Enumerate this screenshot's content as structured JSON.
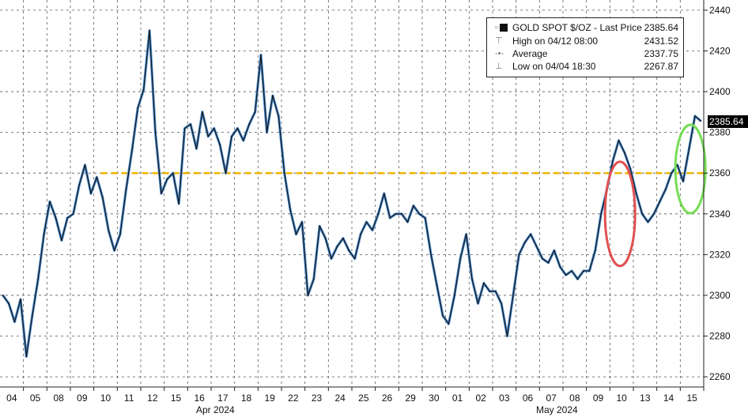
{
  "legend": {
    "title": "GOLD SPOT $/OZ - Last Price",
    "title_value": "2385.64",
    "high_label": "High on 04/12 08:00",
    "high_value": "2431.52",
    "avg_label": "Average",
    "avg_value": "2337.75",
    "low_label": "Low on 04/04 18:30",
    "low_value": "2267.87"
  },
  "last_price_badge": "2385.64",
  "months": {
    "april": "Apr 2024",
    "may": "May 2024"
  },
  "chart_data": {
    "type": "line",
    "title": "",
    "xlabel": "",
    "ylabel": "",
    "ylim": [
      2255,
      2445
    ],
    "yticks": [
      2260,
      2280,
      2300,
      2320,
      2340,
      2360,
      2380,
      2400,
      2420,
      2440
    ],
    "xticks": [
      "04",
      "05",
      "08",
      "09",
      "10",
      "11",
      "12",
      "15",
      "16",
      "17",
      "18",
      "19",
      "22",
      "23",
      "24",
      "25",
      "26",
      "29",
      "30",
      "01",
      "02",
      "03",
      "06",
      "07",
      "08",
      "09",
      "10",
      "13",
      "14",
      "15"
    ],
    "reference_line": {
      "value": 2360,
      "color": "#f0b400",
      "style": "dashed"
    },
    "annotations": [
      {
        "shape": "ellipse",
        "color": "#e05050",
        "around": "10"
      },
      {
        "shape": "ellipse",
        "color": "#77dd55",
        "around": "15"
      }
    ],
    "series": [
      {
        "color": "#1a1a1a",
        "highlight": "#4a90d9",
        "points": [
          [
            "04",
            2300
          ],
          [
            "04",
            2296
          ],
          [
            "04",
            2287
          ],
          [
            "04",
            2298
          ],
          [
            "05",
            2270
          ],
          [
            "05",
            2290
          ],
          [
            "05",
            2308
          ],
          [
            "05",
            2330
          ],
          [
            "08",
            2346
          ],
          [
            "08",
            2338
          ],
          [
            "08",
            2327
          ],
          [
            "08",
            2338
          ],
          [
            "09",
            2340
          ],
          [
            "09",
            2354
          ],
          [
            "09",
            2364
          ],
          [
            "09",
            2350
          ],
          [
            "10",
            2358
          ],
          [
            "10",
            2348
          ],
          [
            "10",
            2332
          ],
          [
            "10",
            2322
          ],
          [
            "11",
            2330
          ],
          [
            "11",
            2352
          ],
          [
            "11",
            2371
          ],
          [
            "11",
            2392
          ],
          [
            "12",
            2401
          ],
          [
            "12",
            2430
          ],
          [
            "12",
            2380
          ],
          [
            "12",
            2350
          ],
          [
            "15",
            2357
          ],
          [
            "15",
            2360
          ],
          [
            "15",
            2345
          ],
          [
            "15",
            2382
          ],
          [
            "16",
            2384
          ],
          [
            "16",
            2372
          ],
          [
            "16",
            2390
          ],
          [
            "16",
            2378
          ],
          [
            "17",
            2382
          ],
          [
            "17",
            2374
          ],
          [
            "17",
            2360
          ],
          [
            "17",
            2378
          ],
          [
            "18",
            2382
          ],
          [
            "18",
            2376
          ],
          [
            "18",
            2384
          ],
          [
            "18",
            2390
          ],
          [
            "19",
            2418
          ],
          [
            "19",
            2380
          ],
          [
            "19",
            2398
          ],
          [
            "19",
            2388
          ],
          [
            "22",
            2360
          ],
          [
            "22",
            2342
          ],
          [
            "22",
            2330
          ],
          [
            "22",
            2336
          ],
          [
            "23",
            2300
          ],
          [
            "23",
            2308
          ],
          [
            "23",
            2334
          ],
          [
            "23",
            2328
          ],
          [
            "24",
            2318
          ],
          [
            "24",
            2324
          ],
          [
            "24",
            2328
          ],
          [
            "24",
            2322
          ],
          [
            "25",
            2318
          ],
          [
            "25",
            2330
          ],
          [
            "25",
            2336
          ],
          [
            "25",
            2332
          ],
          [
            "26",
            2340
          ],
          [
            "26",
            2350
          ],
          [
            "26",
            2338
          ],
          [
            "26",
            2340
          ],
          [
            "29",
            2340
          ],
          [
            "29",
            2336
          ],
          [
            "29",
            2344
          ],
          [
            "29",
            2340
          ],
          [
            "30",
            2338
          ],
          [
            "30",
            2320
          ],
          [
            "30",
            2305
          ],
          [
            "30",
            2290
          ],
          [
            "01",
            2286
          ],
          [
            "01",
            2300
          ],
          [
            "01",
            2318
          ],
          [
            "01",
            2330
          ],
          [
            "02",
            2308
          ],
          [
            "02",
            2296
          ],
          [
            "02",
            2306
          ],
          [
            "02",
            2302
          ],
          [
            "03",
            2302
          ],
          [
            "03",
            2296
          ],
          [
            "03",
            2280
          ],
          [
            "03",
            2300
          ],
          [
            "06",
            2320
          ],
          [
            "06",
            2326
          ],
          [
            "06",
            2330
          ],
          [
            "06",
            2324
          ],
          [
            "07",
            2318
          ],
          [
            "07",
            2316
          ],
          [
            "07",
            2322
          ],
          [
            "07",
            2314
          ],
          [
            "08",
            2310
          ],
          [
            "08",
            2312
          ],
          [
            "08",
            2308
          ],
          [
            "08",
            2312
          ],
          [
            "09",
            2312
          ],
          [
            "09",
            2322
          ],
          [
            "09",
            2340
          ],
          [
            "09",
            2352
          ],
          [
            "10",
            2366
          ],
          [
            "10",
            2376
          ],
          [
            "10",
            2370
          ],
          [
            "10",
            2362
          ],
          [
            "13",
            2350
          ],
          [
            "13",
            2340
          ],
          [
            "13",
            2336
          ],
          [
            "13",
            2340
          ],
          [
            "14",
            2346
          ],
          [
            "14",
            2352
          ],
          [
            "14",
            2360
          ],
          [
            "14",
            2364
          ],
          [
            "15",
            2356
          ],
          [
            "15",
            2372
          ],
          [
            "15",
            2388
          ],
          [
            "15",
            2385.64
          ]
        ]
      }
    ]
  }
}
